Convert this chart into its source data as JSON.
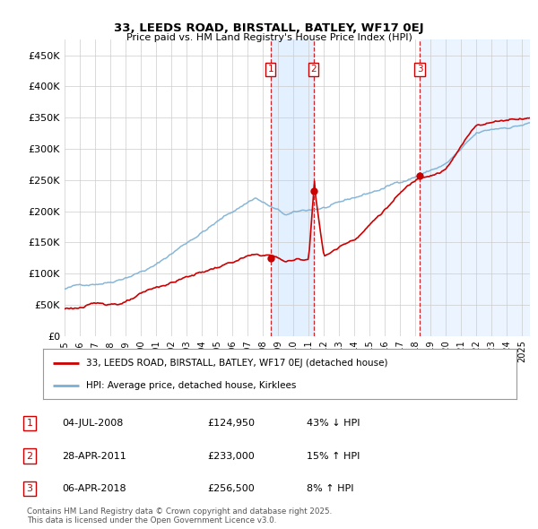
{
  "title1": "33, LEEDS ROAD, BIRSTALL, BATLEY, WF17 0EJ",
  "title2": "Price paid vs. HM Land Registry's House Price Index (HPI)",
  "ylabel_ticks": [
    "£0",
    "£50K",
    "£100K",
    "£150K",
    "£200K",
    "£250K",
    "£300K",
    "£350K",
    "£400K",
    "£450K"
  ],
  "ytick_values": [
    0,
    50000,
    100000,
    150000,
    200000,
    250000,
    300000,
    350000,
    400000,
    450000
  ],
  "ylim": [
    0,
    475000
  ],
  "xlim_start": 1995.0,
  "xlim_end": 2025.5,
  "sale_dates": [
    2008.5,
    2011.33,
    2018.27
  ],
  "sale_prices": [
    124950,
    233000,
    256500
  ],
  "sale_labels": [
    "1",
    "2",
    "3"
  ],
  "vline_color": "#cc0000",
  "hpi_color": "#7bafd4",
  "price_color": "#cc0000",
  "shade_color": "#ddeeff",
  "legend_label1": "33, LEEDS ROAD, BIRSTALL, BATLEY, WF17 0EJ (detached house)",
  "legend_label2": "HPI: Average price, detached house, Kirklees",
  "table_rows": [
    [
      "1",
      "04-JUL-2008",
      "£124,950",
      "43% ↓ HPI"
    ],
    [
      "2",
      "28-APR-2011",
      "£233,000",
      "15% ↑ HPI"
    ],
    [
      "3",
      "06-APR-2018",
      "£256,500",
      "8% ↑ HPI"
    ]
  ],
  "footnote": "Contains HM Land Registry data © Crown copyright and database right 2025.\nThis data is licensed under the Open Government Licence v3.0.",
  "background_color": "#ffffff",
  "grid_color": "#cccccc"
}
